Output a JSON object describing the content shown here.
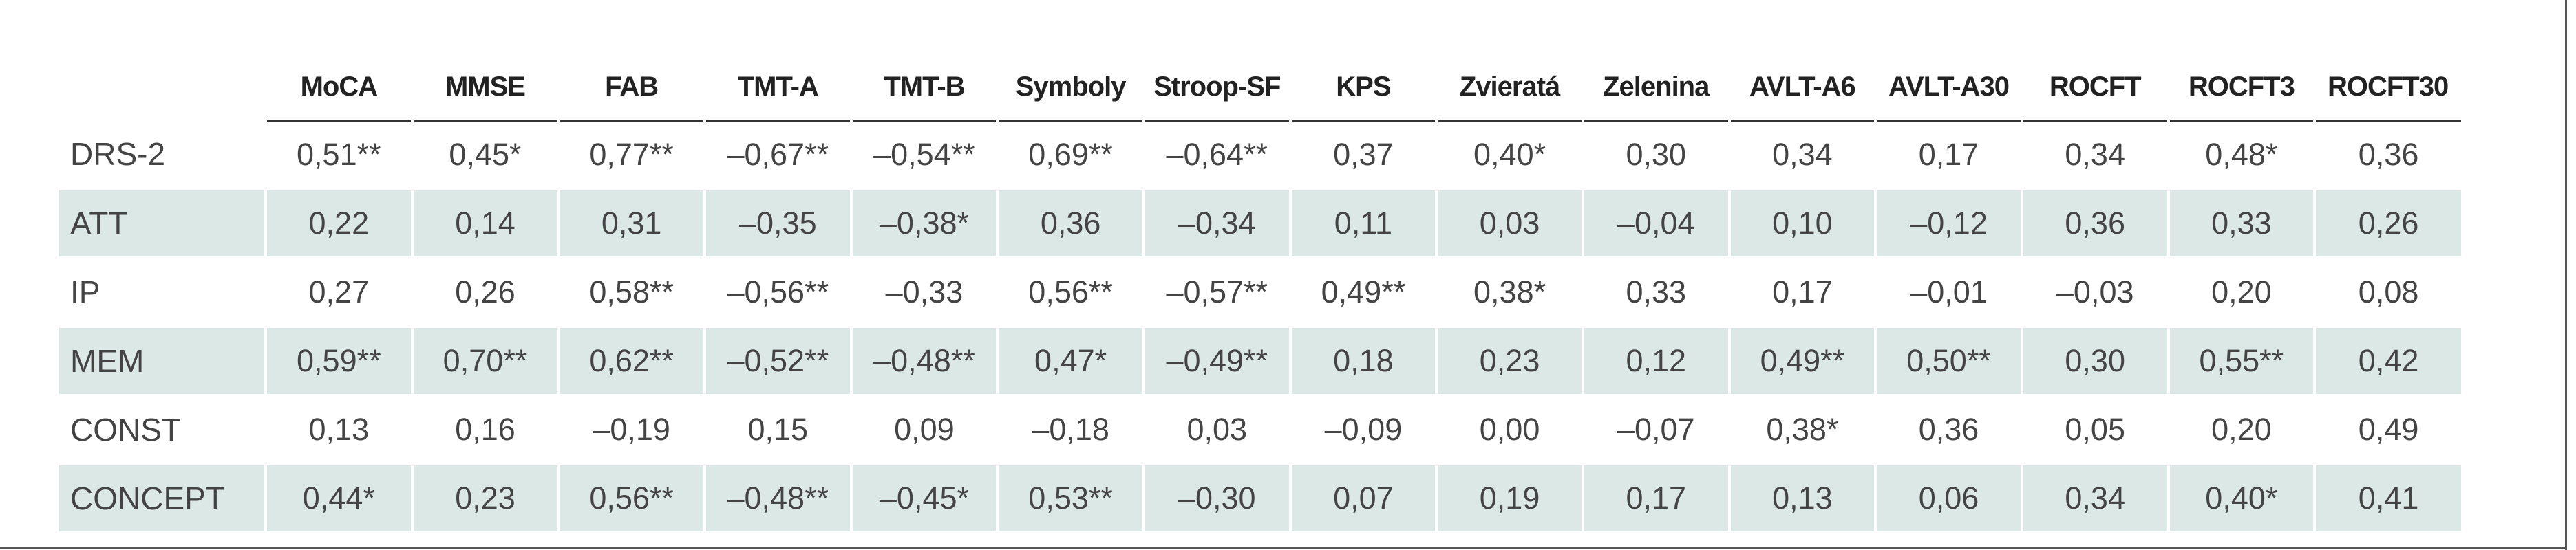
{
  "table": {
    "columns": [
      "MoCA",
      "MMSE",
      "FAB",
      "TMT-A",
      "TMT-B",
      "Symboly",
      "Stroop-SF",
      "KPS",
      "Zvieratá",
      "Zelenina",
      "AVLT-A6",
      "AVLT-A30",
      "ROCFT",
      "ROCFT3",
      "ROCFT30"
    ],
    "rows": [
      {
        "label": "DRS-2",
        "shaded": false,
        "values": [
          "0,51**",
          "0,45*",
          "0,77**",
          "–0,67**",
          "–0,54**",
          "0,69**",
          "–0,64**",
          "0,37",
          "0,40*",
          "0,30",
          "0,34",
          "0,17",
          "0,34",
          "0,48*",
          "0,36"
        ]
      },
      {
        "label": "ATT",
        "shaded": true,
        "values": [
          "0,22",
          "0,14",
          "0,31",
          "–0,35",
          "–0,38*",
          "0,36",
          "–0,34",
          "0,11",
          "0,03",
          "–0,04",
          "0,10",
          "–0,12",
          "0,36",
          "0,33",
          "0,26"
        ]
      },
      {
        "label": "IP",
        "shaded": false,
        "values": [
          "0,27",
          "0,26",
          "0,58**",
          "–0,56**",
          "–0,33",
          "0,56**",
          "–0,57**",
          "0,49**",
          "0,38*",
          "0,33",
          "0,17",
          "–0,01",
          "–0,03",
          "0,20",
          "0,08"
        ]
      },
      {
        "label": "MEM",
        "shaded": true,
        "values": [
          "0,59**",
          "0,70**",
          "0,62**",
          "–0,52**",
          "–0,48**",
          "0,47*",
          "–0,49**",
          "0,18",
          "0,23",
          "0,12",
          "0,49**",
          "0,50**",
          "0,30",
          "0,55**",
          "0,42"
        ]
      },
      {
        "label": "CONST",
        "shaded": false,
        "values": [
          "0,13",
          "0,16",
          "–0,19",
          "0,15",
          "0,09",
          "–0,18",
          "0,03",
          "–0,09",
          "0,00",
          "–0,07",
          "0,38*",
          "0,36",
          "0,05",
          "0,20",
          "0,49"
        ]
      },
      {
        "label": "CONCEPT",
        "shaded": true,
        "values": [
          "0,44*",
          "0,23",
          "0,56**",
          "–0,48**",
          "–0,45*",
          "0,53**",
          "–0,30",
          "0,07",
          "0,19",
          "0,17",
          "0,13",
          "0,06",
          "0,34",
          "0,40*",
          "0,41"
        ]
      }
    ]
  },
  "colors": {
    "shade": "#dbe8e5",
    "rule": "#333333",
    "text": "#444444"
  }
}
